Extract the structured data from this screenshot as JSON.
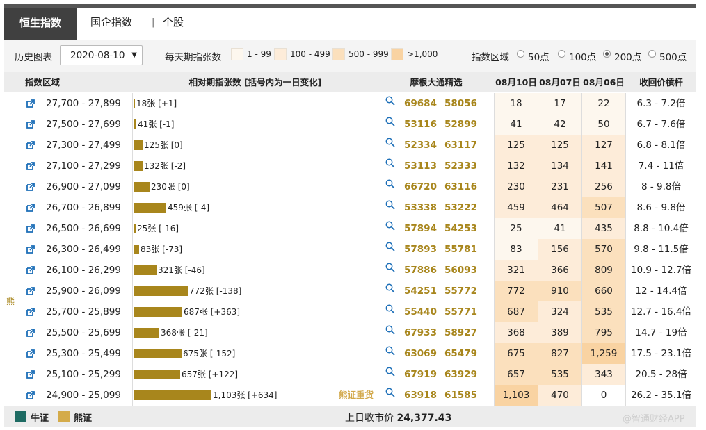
{
  "tabs": {
    "active": "恒生指数",
    "items": [
      "国企指数",
      "个股"
    ],
    "separator": "|"
  },
  "controls": {
    "history_label": "历史图表",
    "date_value": "2020-08-10",
    "caret": "▼",
    "daily_label": "每天期指张数",
    "legend": [
      {
        "text": "1 - 99",
        "color": "#fdf7ee"
      },
      {
        "text": "100 - 499",
        "color": "#fdecd9"
      },
      {
        "text": "500 - 999",
        "color": "#fbe0bd"
      },
      {
        "text": ">1,000",
        "color": "#f9d3a2"
      }
    ],
    "range_label": "指数区域",
    "range_options": [
      "50点",
      "100点",
      "200点",
      "500点"
    ],
    "range_selected": "200点"
  },
  "table": {
    "headers": {
      "region": "指数区域",
      "relative": "相对期指张数 [括号内为一日变化]",
      "picks": "摩根大通精选",
      "d1": "08月10日",
      "d2": "08月07日",
      "d3": "08月06日",
      "lever": "收回价槓杆"
    },
    "bar_max": 1103,
    "rows": [
      {
        "range": "27,700 - 27,899",
        "count": 18,
        "label": "18张 [+1]",
        "c1": "69684",
        "c2": "58056",
        "d1": "18",
        "d2": "17",
        "d3": "22",
        "lever": "6.3 - 7.2倍"
      },
      {
        "range": "27,500 - 27,699",
        "count": 41,
        "label": "41张 [-1]",
        "c1": "53116",
        "c2": "52899",
        "d1": "41",
        "d2": "42",
        "d3": "50",
        "lever": "6.7 - 7.6倍"
      },
      {
        "range": "27,300 - 27,499",
        "count": 125,
        "label": "125张 [0]",
        "c1": "52334",
        "c2": "63117",
        "d1": "125",
        "d2": "125",
        "d3": "127",
        "lever": "6.8 - 8.1倍"
      },
      {
        "range": "27,100 - 27,299",
        "count": 132,
        "label": "132张 [-2]",
        "c1": "53113",
        "c2": "52333",
        "d1": "132",
        "d2": "134",
        "d3": "141",
        "lever": "7.4 - 11倍"
      },
      {
        "range": "26,900 - 27,099",
        "count": 230,
        "label": "230张 [0]",
        "c1": "66720",
        "c2": "63116",
        "d1": "230",
        "d2": "231",
        "d3": "256",
        "lever": "8 - 9.8倍"
      },
      {
        "range": "26,700 - 26,899",
        "count": 459,
        "label": "459张 [-4]",
        "c1": "53338",
        "c2": "53222",
        "d1": "459",
        "d2": "464",
        "d3": "507",
        "lever": "8.6 - 9.8倍"
      },
      {
        "range": "26,500 - 26,699",
        "count": 25,
        "label": "25张 [-16]",
        "c1": "57894",
        "c2": "54253",
        "d1": "25",
        "d2": "41",
        "d3": "435",
        "lever": "8.8 - 10.4倍"
      },
      {
        "range": "26,300 - 26,499",
        "count": 83,
        "label": "83张 [-73]",
        "c1": "57893",
        "c2": "55781",
        "d1": "83",
        "d2": "156",
        "d3": "570",
        "lever": "9.8 - 11.5倍"
      },
      {
        "range": "26,100 - 26,299",
        "count": 321,
        "label": "321张 [-46]",
        "c1": "57886",
        "c2": "56093",
        "d1": "321",
        "d2": "366",
        "d3": "809",
        "lever": "10.9 - 12.7倍"
      },
      {
        "range": "25,900 - 26,099",
        "count": 772,
        "label": "772张 [-138]",
        "c1": "54251",
        "c2": "55772",
        "d1": "772",
        "d2": "910",
        "d3": "660",
        "lever": "12 - 14.4倍"
      },
      {
        "range": "25,700 - 25,899",
        "count": 687,
        "label": "687张 [+363]",
        "c1": "55440",
        "c2": "55771",
        "d1": "687",
        "d2": "324",
        "d3": "535",
        "lever": "12.7 - 16.4倍"
      },
      {
        "range": "25,500 - 25,699",
        "count": 368,
        "label": "368张 [-21]",
        "c1": "67933",
        "c2": "58927",
        "d1": "368",
        "d2": "389",
        "d3": "795",
        "lever": "14.7 - 19倍"
      },
      {
        "range": "25,300 - 25,499",
        "count": 675,
        "label": "675张 [-152]",
        "c1": "63069",
        "c2": "65479",
        "d1": "675",
        "d2": "827",
        "d3": "1,259",
        "lever": "17.5 - 23.1倍"
      },
      {
        "range": "25,100 - 25,299",
        "count": 657,
        "label": "657张 [+122]",
        "c1": "67919",
        "c2": "63929",
        "d1": "657",
        "d2": "535",
        "d3": "343",
        "lever": "20.5 - 28倍"
      },
      {
        "range": "24,900 - 25,099",
        "count": 1103,
        "label": "1,103张 [+634]",
        "c1": "63918",
        "c2": "61585",
        "d1": "1,103",
        "d2": "470",
        "d3": "0",
        "lever": "26.2 - 35.1倍"
      }
    ],
    "heavy_label": "熊证重货",
    "side_label": "熊"
  },
  "footer": {
    "bull": {
      "label": "牛证",
      "color": "#1e6b63"
    },
    "bear": {
      "label": "熊证",
      "color": "#d4ab4a"
    },
    "prev_close_label": "上日收市价",
    "prev_close_value": "24,377.43"
  },
  "watermark": "@智通财经APP",
  "colors": {
    "bar": "#a8861c",
    "code": "#a8861c"
  }
}
